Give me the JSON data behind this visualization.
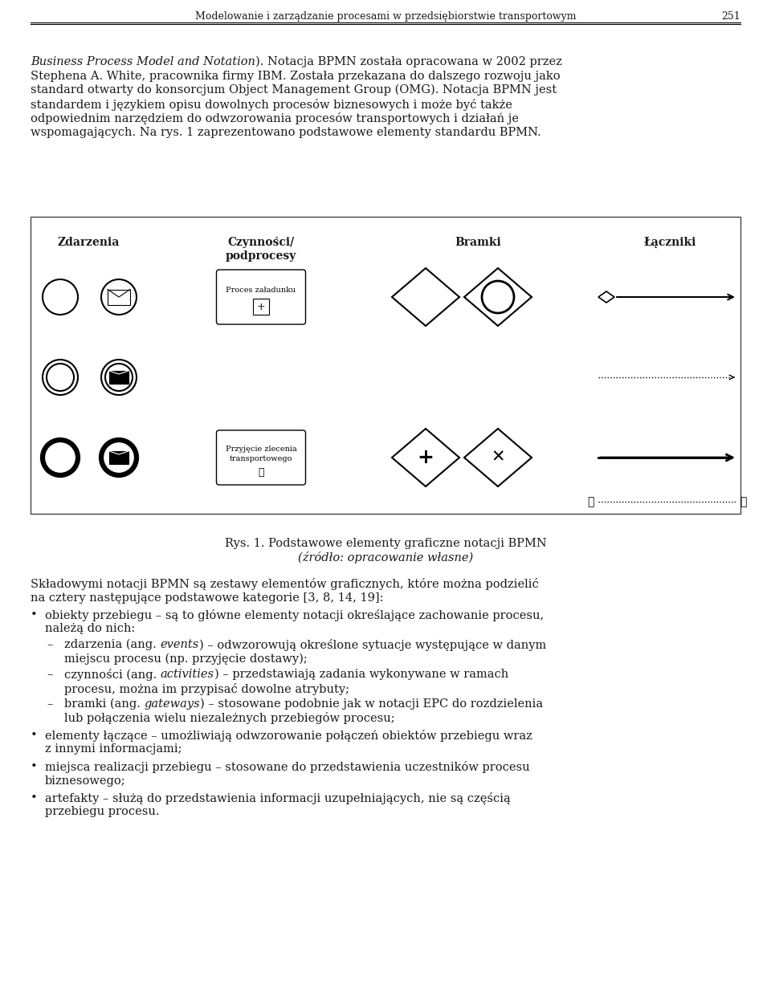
{
  "header_text": "Modelowanie i zarządzanie procesami w przedsiębiorstwie transportowym",
  "header_number": "251",
  "bg_color": "#ffffff",
  "text_color": "#1a1a1a",
  "caption1": "Rys. 1. Podstawowe elementy graficzne notacji BPMN",
  "caption2": "(źródło: opracowanie własne)",
  "col_headers": [
    "Zdarzenia",
    "Czynności/\npodprocesy",
    "Bramki",
    "Łączniki"
  ],
  "font_size_body": 10.5,
  "font_size_small": 9.0,
  "para1_lines": [
    [
      "italic",
      "Business Process Model and Notation",
      "normal",
      "). Notacja BPMN została opracowana w 2002 przez"
    ],
    [
      "normal",
      "Stephena A. White, pracownika firmy IBM. Została przekazana do dalszego rozwoju jako"
    ],
    [
      "normal",
      "standard otwarty do konsorcjum Object Management Group (OMG). Notacja BPMN jest"
    ],
    [
      "normal",
      "standardem i językiem opisu dowolnych procesów biznesowych i może być także"
    ],
    [
      "normal",
      "odpowiednim narzędziem do odwzorowania procesów transportowych i działań je"
    ],
    [
      "normal",
      "wspomagających. Na rys. 1 zaprezentowano podstawowe elementy standardu BPMN."
    ]
  ],
  "intro_lines": [
    "Składowymi notacji BPMN są zestawy elementów graficznych, które można podzielić",
    "na cztery następujące podstawowe kategorie [3, 8, 14, 19]:"
  ],
  "bullet1_lines": [
    "obiekty przebiegu – są to główne elementy notacji określające zachowanie procesu,",
    "należą do nich:"
  ],
  "sub1_pre": "zdarzenia (ang. ",
  "sub1_ital": "events",
  "sub1_post_lines": [
    ") – odwzorowują określone sytuacje występujące w danym",
    "miejscu procesu (np. przyjęcie dostawy);"
  ],
  "sub2_pre": "czynności (ang. ",
  "sub2_ital": "activities",
  "sub2_post_lines": [
    ") – przedstawiają zadania wykonywane w ramach",
    "procesu, można im przypisać dowolne atrybuty;"
  ],
  "sub3_pre": "bramki (ang. ",
  "sub3_ital": "gateways",
  "sub3_post_lines": [
    ") – stosowane podobnie jak w notacji EPC do rozdzielenia",
    "lub połączenia wielu niezależnych przebiegów procesu;"
  ],
  "bullet2_lines": [
    "elementy łączące – umożliwiają odwzorowanie połączeń obiektów przebiegu wraz",
    "z innymi informacjami;"
  ],
  "bullet3_lines": [
    "miejsca realizacji przebiegu – stosowane do przedstawienia uczestników procesu",
    "biznesowego;"
  ],
  "bullet4_lines": [
    "artefakty – służą do przedstawienia informacji uzupełniających, nie są częścią",
    "przebiegu procesu."
  ]
}
